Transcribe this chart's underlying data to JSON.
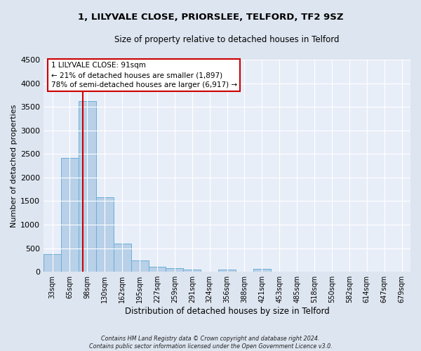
{
  "title": "1, LILYVALE CLOSE, PRIORSLEE, TELFORD, TF2 9SZ",
  "subtitle": "Size of property relative to detached houses in Telford",
  "xlabel": "Distribution of detached houses by size in Telford",
  "ylabel": "Number of detached properties",
  "bar_color": "#b8d0e8",
  "bar_edge_color": "#6aaed6",
  "background_color": "#e8eef8",
  "grid_color": "#ffffff",
  "categories": [
    "33sqm",
    "65sqm",
    "98sqm",
    "130sqm",
    "162sqm",
    "195sqm",
    "227sqm",
    "259sqm",
    "291sqm",
    "324sqm",
    "356sqm",
    "388sqm",
    "421sqm",
    "453sqm",
    "485sqm",
    "518sqm",
    "550sqm",
    "582sqm",
    "614sqm",
    "647sqm",
    "679sqm"
  ],
  "values": [
    370,
    2420,
    3620,
    1580,
    600,
    240,
    110,
    70,
    50,
    0,
    50,
    0,
    60,
    0,
    0,
    0,
    0,
    0,
    0,
    0,
    0
  ],
  "ylim": [
    0,
    4500
  ],
  "yticks": [
    0,
    500,
    1000,
    1500,
    2000,
    2500,
    3000,
    3500,
    4000,
    4500
  ],
  "vline_x": 1.73,
  "vline_color": "#cc0000",
  "annotation_line1": "1 LILYVALE CLOSE: 91sqm",
  "annotation_line2": "← 21% of detached houses are smaller (1,897)",
  "annotation_line3": "78% of semi-detached houses are larger (6,917) →",
  "annotation_box_color": "#cc0000",
  "footer": "Contains HM Land Registry data © Crown copyright and database right 2024.\nContains public sector information licensed under the Open Government Licence v3.0."
}
